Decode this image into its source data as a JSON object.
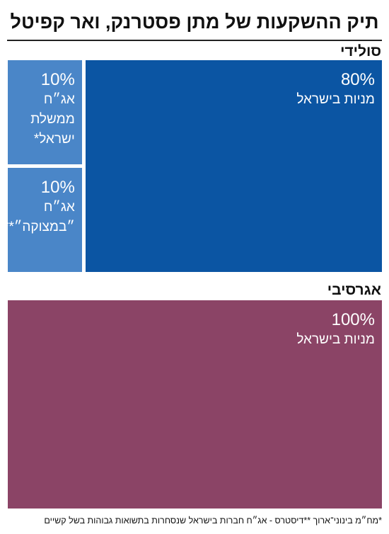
{
  "title": "תיק ההשקעות של מתן פסטרנק, ואר קפיטל",
  "footnote": "*מח״מ בינוני־ארוך  **דיסטרס - אג״ח חברות בישראל שנסחרות בתשואות גבוהות בשל קשיים",
  "chart_data": [
    {
      "type": "treemap",
      "title": "סולידי",
      "categories": [
        "מניות בישראל",
        "אג״ח ממשלת ישראל*",
        "אג״ח ״במצוקה״**"
      ],
      "values": [
        80,
        10,
        10
      ],
      "value_labels": [
        "80%",
        "10%",
        "10%"
      ],
      "colors": [
        "#0b55a3",
        "#4a86c8",
        "#4a86c8"
      ]
    },
    {
      "type": "treemap",
      "title": "אגרסיבי",
      "categories": [
        "מניות בישראל"
      ],
      "values": [
        100
      ],
      "value_labels": [
        "100%"
      ],
      "colors": [
        "#8b4466"
      ]
    }
  ]
}
